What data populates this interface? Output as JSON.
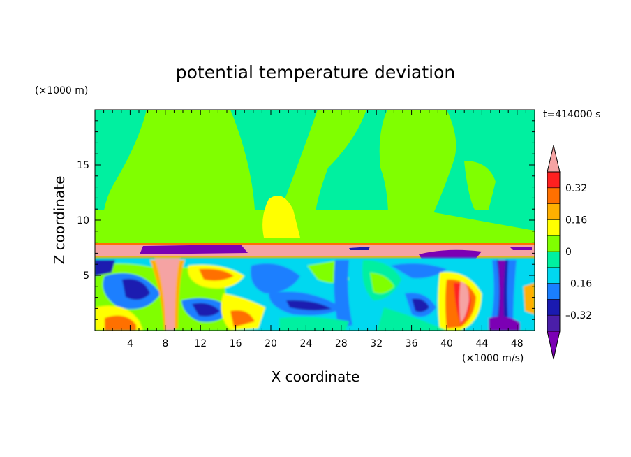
{
  "chart_data": {
    "type": "heatmap",
    "title": "potential temperature deviation",
    "xlabel": "X coordinate",
    "ylabel": "Z coordinate",
    "x_unit": "(×1000 m/s)",
    "y_unit": "(×1000 m)",
    "time_label": "t=414000 s",
    "xlim": [
      0,
      50
    ],
    "ylim": [
      0,
      20
    ],
    "x_ticks": [
      4,
      8,
      12,
      16,
      20,
      24,
      28,
      32,
      36,
      40,
      44,
      48
    ],
    "y_ticks": [
      5,
      10,
      15
    ],
    "colorbar": {
      "levels": [
        -0.4,
        -0.32,
        -0.24,
        -0.16,
        -0.08,
        0,
        0.08,
        0.16,
        0.24,
        0.32,
        0.4
      ],
      "tick_labels": [
        "0.32",
        "0.16",
        "0",
        "–0.16",
        "–0.32"
      ],
      "tick_values": [
        0.32,
        0.16,
        0,
        -0.16,
        -0.32
      ],
      "under_color": "#7b00b4",
      "over_color": "#f5a3a3",
      "colors": [
        "#4a1ea8",
        "#1a1ab0",
        "#1a7fff",
        "#00d8f0",
        "#00f0a0",
        "#80ff00",
        "#ffff00",
        "#ffb000",
        "#ff7000",
        "#ff2020"
      ]
    },
    "regions_description_values": {
      "upper_troposphere": "0 to 0.08",
      "inversion_layer_z_range": [
        6.5,
        7.8
      ],
      "inversion_layer_value": "above 0.4"
    }
  }
}
